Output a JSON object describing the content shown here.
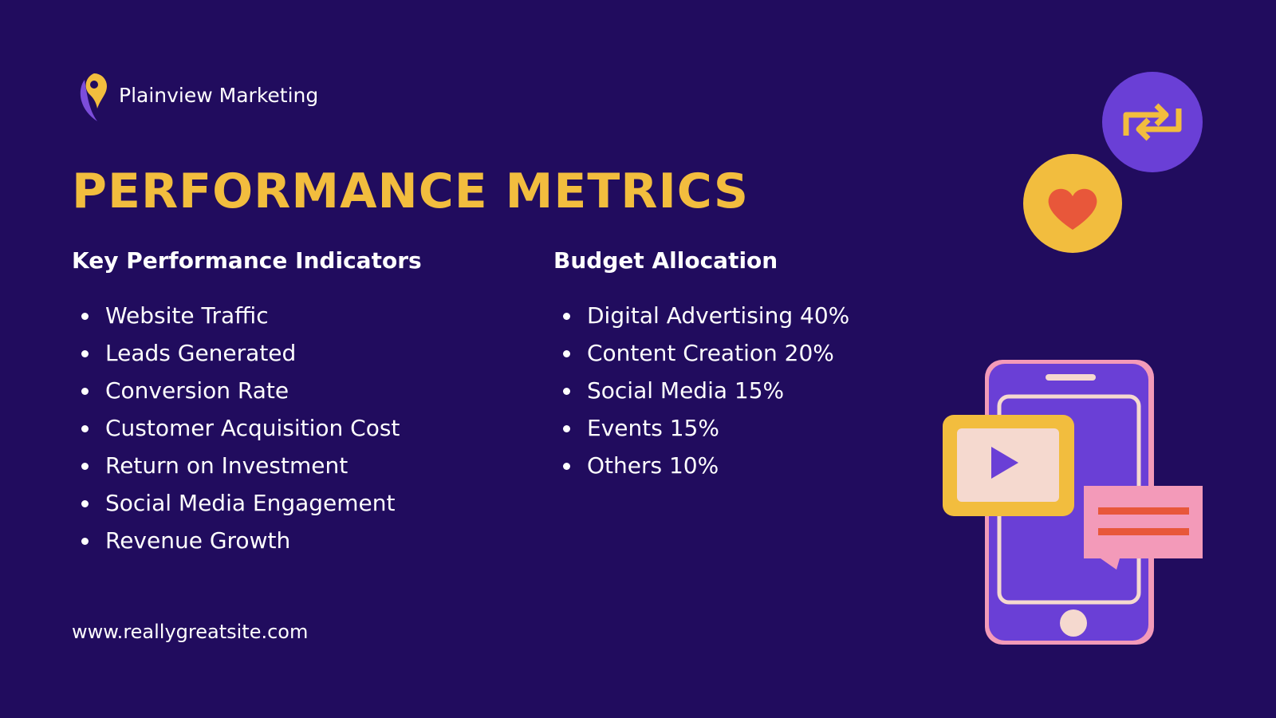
{
  "header": {
    "brand": "Plainview Marketing"
  },
  "title": "PERFORMANCE METRICS",
  "kpi": {
    "heading": "Key Performance Indicators",
    "items": [
      "Website Traffic",
      "Leads Generated",
      "Conversion Rate",
      "Customer Acquisition Cost",
      "Return on Investment",
      "Social Media Engagement",
      "Revenue Growth"
    ]
  },
  "budget": {
    "heading": "Budget Allocation",
    "items": [
      "Digital Advertising 40%",
      "Content Creation 20%",
      "Social Media 15%",
      "Events 15%",
      "Others 10%"
    ]
  },
  "footer": {
    "url": "www.reallygreatsite.com"
  }
}
